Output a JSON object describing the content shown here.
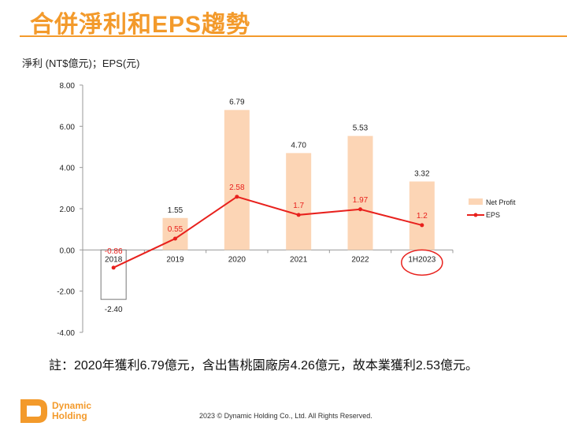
{
  "title": "合併淨利和EPS趨勢",
  "unit_label": "淨利 (NT$億元)；EPS(元)",
  "note": "註：2020年獲利6.79億元，含出售桃園廠房4.26億元，故本業獲利2.53億元。",
  "footer": {
    "logo_text_1": "Dynamic",
    "logo_text_2": "Holding",
    "copyright": "2023 © Dynamic Holding Co., Ltd. All Rights Reserved."
  },
  "chart_data": {
    "type": "bar+line",
    "categories": [
      "2018",
      "2019",
      "2020",
      "2021",
      "2022",
      "1H2023"
    ],
    "series": [
      {
        "name": "Net Profit",
        "type": "bar",
        "color": "#fcd5b5",
        "values": [
          -2.4,
          1.55,
          6.79,
          4.7,
          5.53,
          3.32
        ],
        "labels": [
          "-2.40",
          "1.55",
          "6.79",
          "4.70",
          "5.53",
          "3.32"
        ]
      },
      {
        "name": "EPS",
        "type": "line",
        "color": "#e8211d",
        "values": [
          -0.86,
          0.55,
          2.58,
          1.7,
          1.97,
          1.2
        ],
        "labels": [
          "-0.86",
          "0.55",
          "2.58",
          "1.7",
          "1.97",
          "1.2"
        ]
      }
    ],
    "ylim": [
      -4,
      8
    ],
    "yticks": [
      "8.00",
      "6.00",
      "4.00",
      "2.00",
      "0.00",
      "-2.00",
      "-4.00"
    ],
    "legend": "right",
    "grid": false,
    "highlight": "1H2023 circled in red",
    "highlight_color": "#e8211d"
  }
}
